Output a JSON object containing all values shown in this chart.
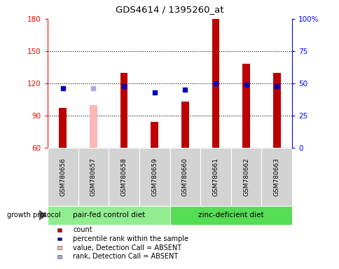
{
  "title": "GDS4614 / 1395260_at",
  "samples": [
    "GSM780656",
    "GSM780657",
    "GSM780658",
    "GSM780659",
    "GSM780660",
    "GSM780661",
    "GSM780662",
    "GSM780663"
  ],
  "count_values": [
    97,
    null,
    130,
    84,
    103,
    180,
    138,
    130
  ],
  "count_absent": [
    null,
    100,
    null,
    null,
    null,
    null,
    null,
    null
  ],
  "rank_values": [
    46,
    null,
    48,
    43,
    45,
    50,
    49,
    48
  ],
  "rank_absent": [
    null,
    46,
    null,
    null,
    null,
    null,
    null,
    null
  ],
  "groups": [
    {
      "label": "pair-fed control diet",
      "start": 0,
      "end": 4,
      "color": "#90ee90"
    },
    {
      "label": "zinc-deficient diet",
      "start": 4,
      "end": 8,
      "color": "#55dd55"
    }
  ],
  "ylim_left": [
    60,
    180
  ],
  "ylim_right": [
    0,
    100
  ],
  "yticks_left": [
    60,
    90,
    120,
    150,
    180
  ],
  "yticks_right": [
    0,
    25,
    50,
    75,
    100
  ],
  "bar_color": "#bb0000",
  "bar_absent_color": "#ffb6b6",
  "dot_color": "#0000bb",
  "dot_absent_color": "#aaaadd",
  "bar_width": 0.25,
  "growth_protocol_label": "growth protocol",
  "legend_items": [
    {
      "label": "count",
      "color": "#bb0000"
    },
    {
      "label": "percentile rank within the sample",
      "color": "#0000bb"
    },
    {
      "label": "value, Detection Call = ABSENT",
      "color": "#ffb6b6"
    },
    {
      "label": "rank, Detection Call = ABSENT",
      "color": "#aaaadd"
    }
  ],
  "grid_lines": [
    90,
    120,
    150
  ],
  "dot_marker_size": 4
}
